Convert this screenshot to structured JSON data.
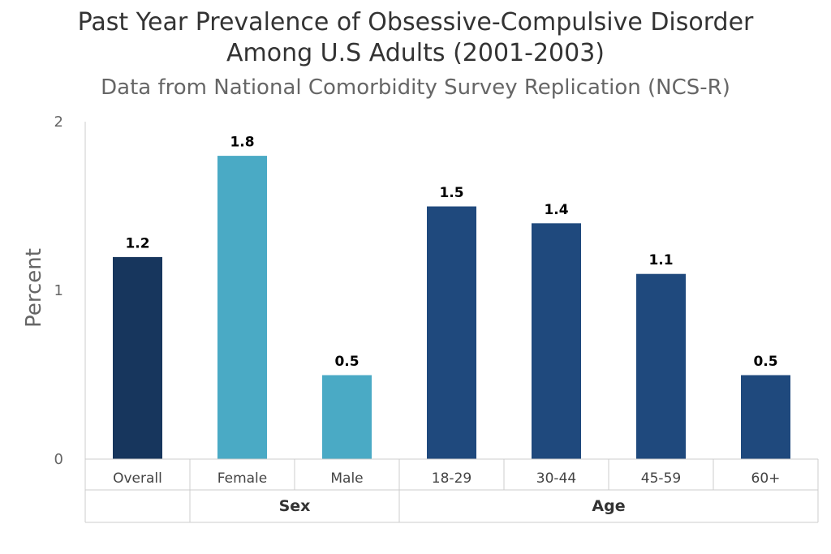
{
  "chart_data": {
    "type": "bar",
    "title_line1": "Past Year Prevalence of Obsessive-Compulsive Disorder",
    "title_line2": "Among U.S Adults (2001-2003)",
    "subtitle": "Data from National Comorbidity Survey Replication (NCS-R)",
    "ylabel": "Percent",
    "xlabel": "",
    "ylim": [
      0,
      2
    ],
    "yticks": [
      0,
      1,
      2
    ],
    "categories": [
      "Overall",
      "Female",
      "Male",
      "18-29",
      "30-44",
      "45-59",
      "60+"
    ],
    "values": [
      1.2,
      1.8,
      0.5,
      1.5,
      1.4,
      1.1,
      0.5
    ],
    "data_labels": [
      "1.2",
      "1.8",
      "0.5",
      "1.5",
      "1.4",
      "1.1",
      "0.5"
    ],
    "bar_colors": [
      "#17365d",
      "#4aaac5",
      "#4aaac5",
      "#1f497d",
      "#1f497d",
      "#1f497d",
      "#1f497d"
    ],
    "groups": [
      {
        "label": "",
        "categories": [
          "Overall"
        ]
      },
      {
        "label": "Sex",
        "categories": [
          "Female",
          "Male"
        ]
      },
      {
        "label": "Age",
        "categories": [
          "18-29",
          "30-44",
          "45-59",
          "60+"
        ]
      }
    ],
    "grid": false,
    "legend": "none"
  }
}
